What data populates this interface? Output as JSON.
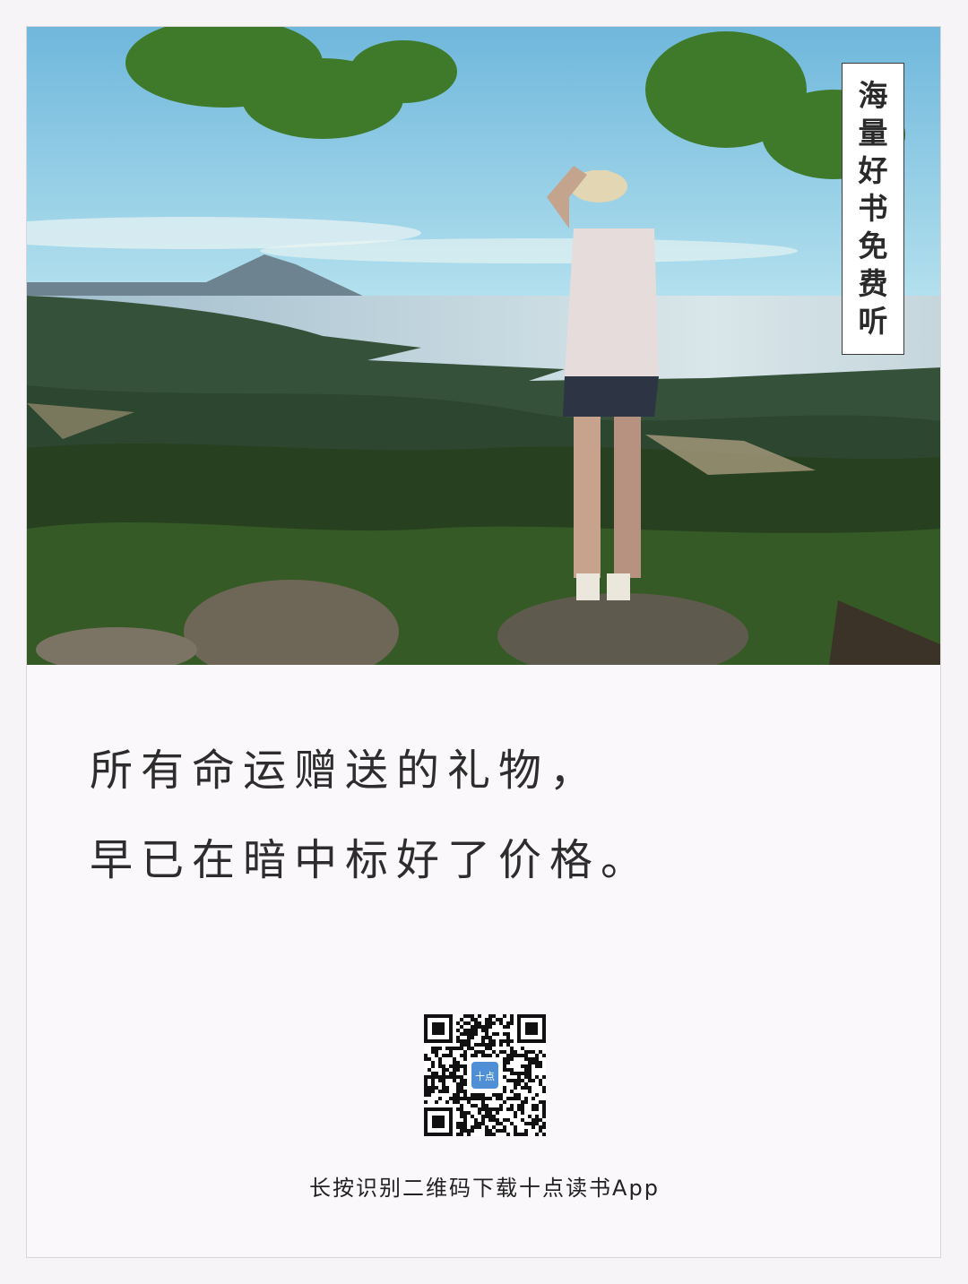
{
  "badge": {
    "chars": [
      "海",
      "量",
      "好",
      "书",
      "免",
      "费",
      "听"
    ]
  },
  "quote": {
    "line1": "所有命运赠送的礼物，",
    "line2": "早已在暗中标好了价格。"
  },
  "qr": {
    "logo_text": "十点",
    "logo_color": "#4f8fd6",
    "caption": "长按识别二维码下载十点读书App"
  },
  "colors": {
    "sky": "#aee0ef",
    "sea": "#bfd7e0",
    "hills": "#2f4a33"
  }
}
